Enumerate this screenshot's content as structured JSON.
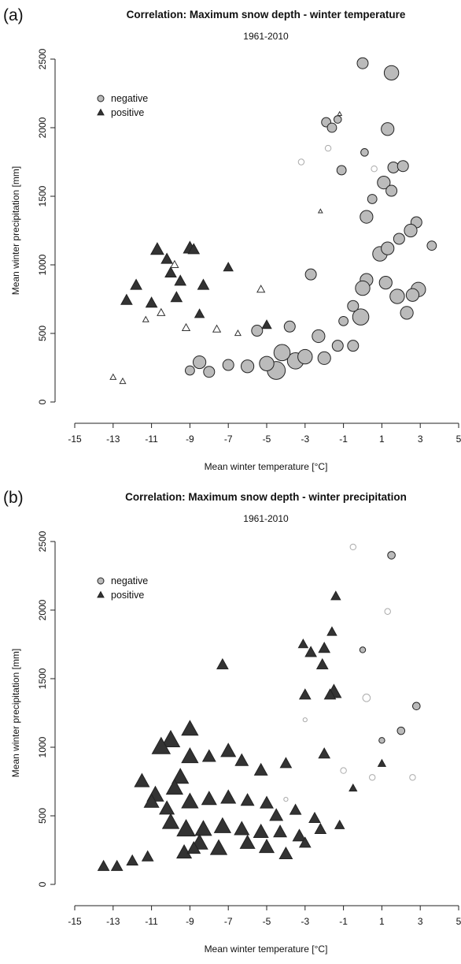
{
  "chart_data": [
    {
      "type": "scatter",
      "panel": "(a)",
      "title": "Correlation: Maximum snow depth - winter temperature",
      "subtitle": "1961-2010",
      "x_label": "Mean winter temperature [°C]",
      "y_label": "Mean winter precipitation [mm]",
      "xlim": [
        -15,
        5
      ],
      "xticks": [
        -15,
        -13,
        -11,
        -9,
        -7,
        -5,
        -3,
        -1,
        1,
        3,
        5
      ],
      "ylim": [
        0,
        2500
      ],
      "yticks": [
        0,
        500,
        1000,
        1500,
        2000,
        2500
      ],
      "legend": "top-left",
      "series": [
        {
          "name": "negative",
          "color": "#aaaaaa",
          "marker": "circle",
          "x": [
            0,
            1.5,
            -1.9,
            -1.3,
            -1.6,
            1.3,
            0.1,
            1.6,
            2.1,
            -1.1,
            1.1,
            0.5,
            1.5,
            2.8,
            2.5,
            0.2,
            1.9,
            3.6,
            -2.7,
            0.9,
            1.3,
            2.9,
            0.2,
            -0.1,
            1.8,
            2.3,
            -0.5,
            -3.5,
            -4.5,
            -5.0,
            -4.2,
            -3.0,
            -2.0,
            -1.3,
            -6.0,
            -7.0,
            -8.5,
            -8.0,
            -9.0,
            -5.5,
            -3.8,
            -1.0,
            -0.5,
            2.6,
            1.2,
            0.0,
            -2.3,
            -3.2,
            -1.8,
            0.6
          ],
          "values": [
            2470,
            2400,
            2040,
            2060,
            2000,
            1990,
            1820,
            1710,
            1720,
            1690,
            1600,
            1480,
            1540,
            1310,
            1250,
            1350,
            1190,
            1140,
            930,
            1080,
            1120,
            820,
            890,
            620,
            770,
            650,
            410,
            300,
            230,
            280,
            360,
            330,
            320,
            410,
            260,
            270,
            290,
            220,
            230,
            520,
            550,
            590,
            700,
            780,
            870,
            830,
            480,
            1750,
            1850,
            1700
          ],
          "sizes": [
            0.5,
            0.7,
            0.4,
            0.3,
            0.4,
            0.6,
            0.3,
            0.5,
            0.5,
            0.4,
            0.6,
            0.4,
            0.5,
            0.5,
            0.6,
            0.6,
            0.5,
            0.4,
            0.5,
            0.7,
            0.6,
            0.7,
            0.6,
            0.8,
            0.7,
            0.6,
            0.5,
            0.8,
            0.9,
            0.7,
            0.8,
            0.7,
            0.6,
            0.5,
            0.6,
            0.5,
            0.6,
            0.5,
            0.4,
            0.5,
            0.5,
            0.4,
            0.5,
            0.6,
            0.6,
            0.7,
            0.6,
            0.2,
            0.2,
            0.2
          ],
          "filled": [
            true,
            true,
            true,
            true,
            true,
            true,
            true,
            true,
            true,
            true,
            true,
            true,
            true,
            true,
            true,
            true,
            true,
            true,
            true,
            true,
            true,
            true,
            true,
            true,
            true,
            true,
            true,
            true,
            true,
            true,
            true,
            true,
            true,
            true,
            true,
            true,
            true,
            true,
            true,
            true,
            true,
            true,
            true,
            true,
            true,
            true,
            true,
            false,
            false,
            false
          ]
        },
        {
          "name": "positive",
          "color": "#333333",
          "marker": "triangle",
          "x": [
            -10.7,
            -10.2,
            -9.0,
            -8.8,
            -11.8,
            -10.0,
            -9.5,
            -8.3,
            -12.3,
            -11.0,
            -9.7,
            -7.0,
            -5.0,
            -8.5,
            -10.5,
            -9.2,
            -7.6,
            -6.5,
            -5.3,
            -9.8,
            -11.3,
            -13.0,
            -12.5,
            -2.2,
            -1.2
          ],
          "values": [
            1110,
            1040,
            1120,
            1110,
            850,
            940,
            880,
            850,
            740,
            720,
            760,
            980,
            560,
            640,
            650,
            540,
            530,
            500,
            820,
            1000,
            600,
            180,
            150,
            1390,
            2100
          ],
          "sizes": [
            0.6,
            0.5,
            0.6,
            0.5,
            0.5,
            0.5,
            0.5,
            0.5,
            0.5,
            0.5,
            0.5,
            0.4,
            0.4,
            0.4,
            0.3,
            0.3,
            0.3,
            0.2,
            0.3,
            0.3,
            0.2,
            0.2,
            0.2,
            0.1,
            0.1
          ],
          "filled": [
            true,
            true,
            true,
            true,
            true,
            true,
            true,
            true,
            true,
            true,
            true,
            true,
            true,
            true,
            false,
            false,
            false,
            false,
            false,
            false,
            false,
            false,
            false,
            false,
            false
          ]
        }
      ]
    },
    {
      "type": "scatter",
      "panel": "(b)",
      "title": "Correlation: Maximum snow depth - winter precipitation",
      "subtitle": "1961-2010",
      "x_label": "Mean winter temperature [°C]",
      "y_label": "Mean winter precipitation [mm]",
      "xlim": [
        -15,
        5
      ],
      "xticks": [
        -15,
        -13,
        -11,
        -9,
        -7,
        -5,
        -3,
        -1,
        1,
        3,
        5
      ],
      "ylim": [
        0,
        2500
      ],
      "yticks": [
        0,
        500,
        1000,
        1500,
        2000,
        2500
      ],
      "legend": "top-left",
      "series": [
        {
          "name": "negative",
          "color": "#aaaaaa",
          "marker": "circle",
          "x": [
            1.5,
            0.0,
            -0.5,
            1.3,
            2.8,
            2.0,
            0.2,
            1.0,
            -1.0,
            -3.0,
            -4.0,
            0.5,
            2.6
          ],
          "values": [
            2400,
            1710,
            2460,
            1990,
            1300,
            1120,
            1360,
            1050,
            830,
            1200,
            620,
            780,
            780
          ],
          "sizes": [
            0.3,
            0.2,
            0.2,
            0.2,
            0.3,
            0.3,
            0.3,
            0.2,
            0.2,
            0.1,
            0.1,
            0.2,
            0.2
          ],
          "filled": [
            true,
            true,
            false,
            false,
            true,
            true,
            false,
            true,
            false,
            false,
            false,
            false,
            false
          ]
        },
        {
          "name": "positive",
          "color": "#333333",
          "marker": "triangle",
          "x": [
            -10.0,
            -9.0,
            -7.3,
            -1.4,
            -1.6,
            -2.0,
            -1.5,
            -3.1,
            -2.7,
            -2.1,
            -1.7,
            -3.0,
            -2.0,
            -10.5,
            -11.5,
            -9.5,
            -9.0,
            -8.0,
            -7.0,
            -6.3,
            -5.3,
            -4.0,
            -10.8,
            -9.8,
            -11.0,
            -9.0,
            -8.0,
            -7.0,
            -6.0,
            -5.0,
            -4.5,
            -3.5,
            -2.5,
            -10.0,
            -9.2,
            -8.3,
            -7.3,
            -6.3,
            -5.3,
            -4.3,
            -3.3,
            -2.2,
            -13.5,
            -12.8,
            -12.0,
            -11.2,
            -9.3,
            -8.5,
            -7.5,
            -6.0,
            -5.0,
            -4.0,
            -3.0,
            -1.2,
            -0.5,
            1.0,
            -10.2,
            -8.8
          ],
          "values": [
            1050,
            1130,
            1600,
            2100,
            1840,
            1720,
            1400,
            1750,
            1690,
            1600,
            1380,
            1380,
            950,
            1000,
            750,
            780,
            930,
            930,
            970,
            900,
            830,
            880,
            650,
            700,
            600,
            600,
            620,
            630,
            610,
            590,
            500,
            540,
            480,
            450,
            400,
            400,
            420,
            400,
            380,
            380,
            350,
            400,
            130,
            130,
            170,
            200,
            230,
            300,
            260,
            300,
            270,
            220,
            300,
            430,
            700,
            880,
            550,
            260
          ],
          "sizes": [
            0.9,
            0.8,
            0.5,
            0.4,
            0.4,
            0.5,
            0.7,
            0.4,
            0.5,
            0.5,
            0.5,
            0.5,
            0.5,
            0.9,
            0.7,
            0.8,
            0.8,
            0.6,
            0.7,
            0.6,
            0.6,
            0.5,
            0.8,
            0.8,
            0.7,
            0.8,
            0.7,
            0.7,
            0.6,
            0.6,
            0.6,
            0.5,
            0.5,
            0.8,
            0.9,
            0.8,
            0.8,
            0.7,
            0.7,
            0.6,
            0.6,
            0.5,
            0.5,
            0.5,
            0.5,
            0.5,
            0.7,
            0.8,
            0.8,
            0.7,
            0.7,
            0.6,
            0.5,
            0.4,
            0.3,
            0.3,
            0.7,
            0.6
          ],
          "filled": [
            true,
            true,
            true,
            true,
            true,
            true,
            true,
            true,
            true,
            true,
            true,
            true,
            true,
            true,
            true,
            true,
            true,
            true,
            true,
            true,
            true,
            true,
            true,
            true,
            true,
            true,
            true,
            true,
            true,
            true,
            true,
            true,
            true,
            true,
            true,
            true,
            true,
            true,
            true,
            true,
            true,
            true,
            true,
            true,
            true,
            true,
            true,
            true,
            true,
            true,
            true,
            true,
            true,
            true,
            true,
            true,
            true,
            true
          ]
        }
      ]
    }
  ]
}
